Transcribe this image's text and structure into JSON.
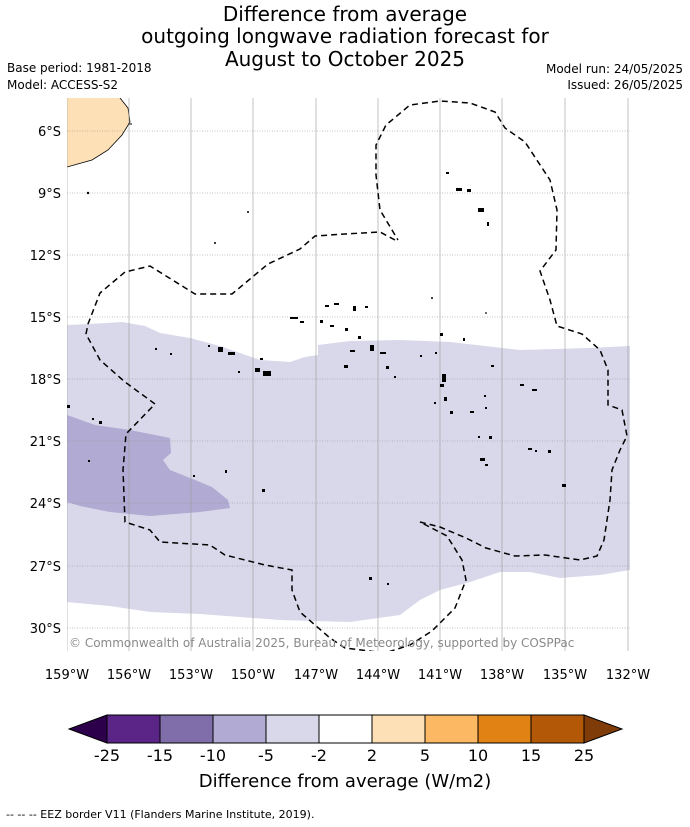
{
  "title_lines": [
    "Difference from average",
    "outgoing longwave radiation forecast for",
    "August to October 2025"
  ],
  "base_period": "Base period: 1981-2018",
  "model": "Model: ACCESS-S2",
  "model_run": "Model run: 24/05/2025",
  "issued": "Issued: 26/05/2025",
  "copyright": "© Commonwealth of Australia 2025, Bureau of Meteorology, supported by COSPPac",
  "lat_labels": [
    "6°S",
    "9°S",
    "12°S",
    "15°S",
    "18°S",
    "21°S",
    "24°S",
    "27°S",
    "30°S"
  ],
  "lon_labels": [
    "159°W",
    "156°W",
    "153°W",
    "150°W",
    "147°W",
    "144°W",
    "141°W",
    "138°W",
    "135°W",
    "132°W"
  ],
  "colorbar": {
    "labels": [
      "-25",
      "-15",
      "-10",
      "-5",
      "-2",
      "2",
      "5",
      "10",
      "15",
      "25"
    ],
    "title": "Difference from average (W/m2)",
    "colors": [
      "#5a2587",
      "#7f6eaa",
      "#b1aad2",
      "#d8d8ea",
      "#ffffff",
      "#fde0b6",
      "#fdb863",
      "#e08214",
      "#b35806"
    ],
    "under_color": "#2d004b",
    "over_color": "#7f3b08"
  },
  "footnote": "--  --  -- EEZ border V11 (Flanders Marine Institute, 2019).",
  "colors": {
    "anomaly_neg_2_5": "#d8d8ea",
    "anomaly_neg_5_10": "#b1aad2",
    "anomaly_pos_2_5": "#fde0b6",
    "gridline": "#888888"
  }
}
